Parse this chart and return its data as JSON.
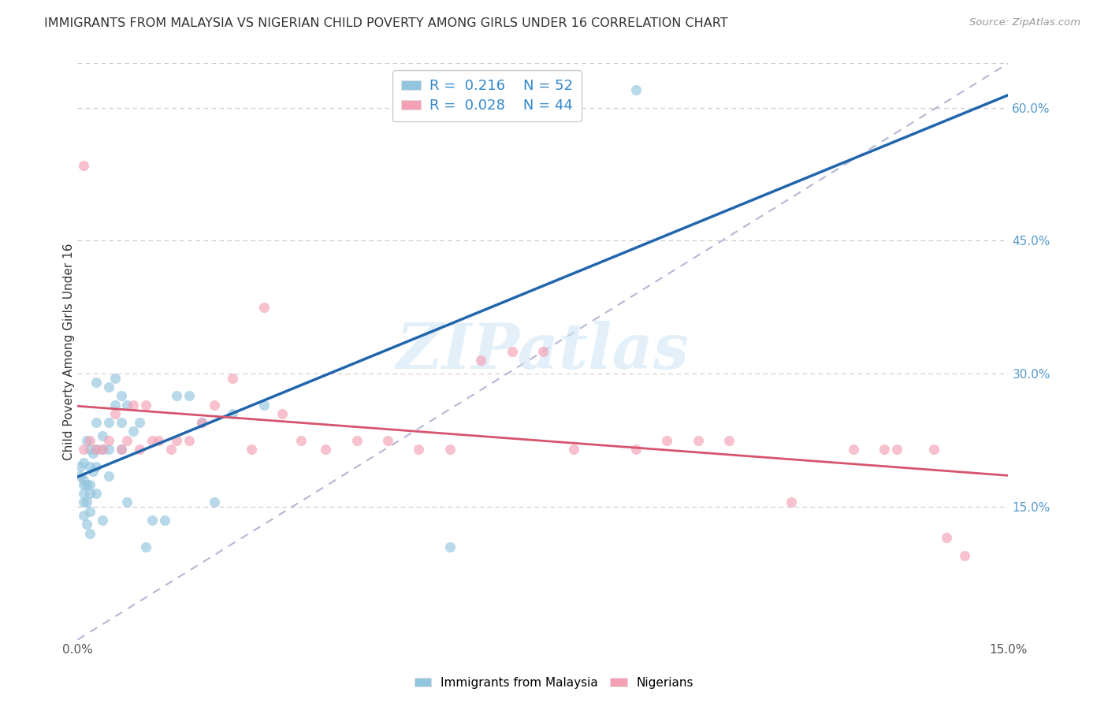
{
  "title": "IMMIGRANTS FROM MALAYSIA VS NIGERIAN CHILD POVERTY AMONG GIRLS UNDER 16 CORRELATION CHART",
  "source": "Source: ZipAtlas.com",
  "ylabel": "Child Poverty Among Girls Under 16",
  "xmin": 0.0,
  "xmax": 0.15,
  "ymin": 0.0,
  "ymax": 0.65,
  "yticks": [
    0.15,
    0.3,
    0.45,
    0.6
  ],
  "ytick_labels": [
    "15.0%",
    "30.0%",
    "45.0%",
    "60.0%"
  ],
  "xticks": [
    0.0,
    0.025,
    0.05,
    0.075,
    0.1,
    0.125,
    0.15
  ],
  "xtick_labels": [
    "0.0%",
    "",
    "",
    "",
    "",
    "",
    "15.0%"
  ],
  "color_blue": "#92c5de",
  "color_pink": "#f4a0b5",
  "color_blue_line": "#2166ac",
  "color_pink_line": "#d6546e",
  "color_diag_line": "#aaaacc",
  "right_axis_color": "#5599cc",
  "watermark": "ZIPatlas",
  "malaysia_x": [
    0.0005,
    0.0005,
    0.001,
    0.001,
    0.001,
    0.001,
    0.001,
    0.001,
    0.0015,
    0.0015,
    0.0015,
    0.0015,
    0.002,
    0.002,
    0.002,
    0.002,
    0.002,
    0.002,
    0.0025,
    0.0025,
    0.003,
    0.003,
    0.003,
    0.003,
    0.003,
    0.004,
    0.004,
    0.004,
    0.005,
    0.005,
    0.005,
    0.005,
    0.006,
    0.006,
    0.007,
    0.007,
    0.007,
    0.008,
    0.008,
    0.009,
    0.01,
    0.011,
    0.012,
    0.014,
    0.016,
    0.018,
    0.02,
    0.022,
    0.025,
    0.03,
    0.06,
    0.09
  ],
  "malaysia_y": [
    0.195,
    0.185,
    0.18,
    0.175,
    0.165,
    0.155,
    0.14,
    0.2,
    0.225,
    0.175,
    0.155,
    0.13,
    0.215,
    0.195,
    0.175,
    0.165,
    0.145,
    0.12,
    0.21,
    0.19,
    0.29,
    0.245,
    0.215,
    0.195,
    0.165,
    0.23,
    0.215,
    0.135,
    0.285,
    0.245,
    0.215,
    0.185,
    0.295,
    0.265,
    0.275,
    0.245,
    0.215,
    0.265,
    0.155,
    0.235,
    0.245,
    0.105,
    0.135,
    0.135,
    0.275,
    0.275,
    0.245,
    0.155,
    0.255,
    0.265,
    0.105,
    0.62
  ],
  "nigerian_x": [
    0.001,
    0.001,
    0.002,
    0.003,
    0.004,
    0.005,
    0.006,
    0.007,
    0.008,
    0.009,
    0.01,
    0.011,
    0.012,
    0.013,
    0.015,
    0.016,
    0.018,
    0.02,
    0.022,
    0.025,
    0.028,
    0.03,
    0.033,
    0.036,
    0.04,
    0.045,
    0.05,
    0.055,
    0.06,
    0.065,
    0.07,
    0.075,
    0.08,
    0.09,
    0.095,
    0.1,
    0.105,
    0.115,
    0.125,
    0.13,
    0.132,
    0.138,
    0.14,
    0.143
  ],
  "nigerian_y": [
    0.535,
    0.215,
    0.225,
    0.215,
    0.215,
    0.225,
    0.255,
    0.215,
    0.225,
    0.265,
    0.215,
    0.265,
    0.225,
    0.225,
    0.215,
    0.225,
    0.225,
    0.245,
    0.265,
    0.295,
    0.215,
    0.375,
    0.255,
    0.225,
    0.215,
    0.225,
    0.225,
    0.215,
    0.215,
    0.315,
    0.325,
    0.325,
    0.215,
    0.215,
    0.225,
    0.225,
    0.225,
    0.155,
    0.215,
    0.215,
    0.215,
    0.215,
    0.115,
    0.095
  ]
}
